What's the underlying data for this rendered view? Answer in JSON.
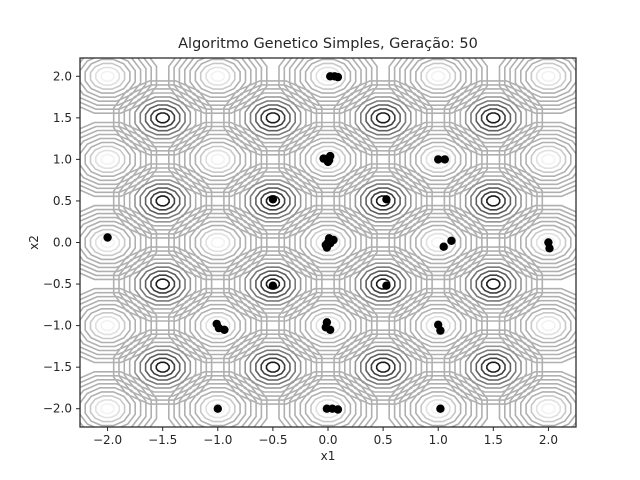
{
  "chart_data": {
    "type": "scatter",
    "title": "Algoritmo Genetico Simples, Geração: 50",
    "xlabel": "x1",
    "ylabel": "x2",
    "xlim": [
      -2.25,
      2.25
    ],
    "ylim": [
      -2.22,
      2.22
    ],
    "grid": false,
    "xticks": [
      -2.0,
      -1.5,
      -1.0,
      -0.5,
      0.0,
      0.5,
      1.0,
      1.5,
      2.0
    ],
    "yticks": [
      -2.0,
      -1.5,
      -1.0,
      -0.5,
      0.0,
      0.5,
      1.0,
      1.5,
      2.0
    ],
    "xtick_labels": [
      "−2.0",
      "−1.5",
      "−1.0",
      "−0.5",
      "0.0",
      "0.5",
      "1.0",
      "1.5",
      "2.0"
    ],
    "ytick_labels": [
      "−2.0",
      "−1.5",
      "−1.0",
      "−0.5",
      "0.0",
      "0.5",
      "1.0",
      "1.5",
      "2.0"
    ],
    "contour": {
      "domain": [
        -2.0,
        2.0
      ],
      "peaks": [
        {
          "x": -1.5,
          "y": 1.5
        },
        {
          "x": -0.5,
          "y": 1.5
        },
        {
          "x": 0.5,
          "y": 1.5
        },
        {
          "x": 1.5,
          "y": 1.5
        },
        {
          "x": -1.5,
          "y": 0.5
        },
        {
          "x": -0.5,
          "y": 0.5
        },
        {
          "x": 0.5,
          "y": 0.5
        },
        {
          "x": 1.5,
          "y": 0.5
        },
        {
          "x": -1.5,
          "y": -0.5
        },
        {
          "x": -0.5,
          "y": -0.5
        },
        {
          "x": 0.5,
          "y": -0.5
        },
        {
          "x": 1.5,
          "y": -0.5
        },
        {
          "x": -1.5,
          "y": -1.5
        },
        {
          "x": -0.5,
          "y": -1.5
        },
        {
          "x": 0.5,
          "y": -1.5
        },
        {
          "x": 1.5,
          "y": -1.5
        }
      ],
      "troughs": [
        {
          "x": -2.0,
          "y": 2.0
        },
        {
          "x": -1.0,
          "y": 2.0
        },
        {
          "x": 0.0,
          "y": 2.0
        },
        {
          "x": 1.0,
          "y": 2.0
        },
        {
          "x": 2.0,
          "y": 2.0
        },
        {
          "x": -2.0,
          "y": 1.0
        },
        {
          "x": -1.0,
          "y": 1.0
        },
        {
          "x": 0.0,
          "y": 1.0
        },
        {
          "x": 1.0,
          "y": 1.0
        },
        {
          "x": 2.0,
          "y": 1.0
        },
        {
          "x": -2.0,
          "y": 0.0
        },
        {
          "x": -1.0,
          "y": 0.0
        },
        {
          "x": 0.0,
          "y": 0.0
        },
        {
          "x": 1.0,
          "y": 0.0
        },
        {
          "x": 2.0,
          "y": 0.0
        },
        {
          "x": -2.0,
          "y": -1.0
        },
        {
          "x": -1.0,
          "y": -1.0
        },
        {
          "x": 0.0,
          "y": -1.0
        },
        {
          "x": 1.0,
          "y": -1.0
        },
        {
          "x": 2.0,
          "y": -1.0
        },
        {
          "x": -2.0,
          "y": -2.0
        },
        {
          "x": -1.0,
          "y": -2.0
        },
        {
          "x": 0.0,
          "y": -2.0
        },
        {
          "x": 1.0,
          "y": -2.0
        },
        {
          "x": 2.0,
          "y": -2.0
        }
      ],
      "colors": [
        "#ffffff",
        "#f2f2f2",
        "#e0e0e0",
        "#c8c8c8",
        "#b0b0b0",
        "#959595",
        "#7a7a7a",
        "#5e5e5e",
        "#404040",
        "#1a1a1a"
      ]
    },
    "series": [
      {
        "color": "#000000",
        "points": [
          {
            "x": 0.02,
            "y": 2.0
          },
          {
            "x": 0.06,
            "y": 2.0
          },
          {
            "x": 0.09,
            "y": 1.99
          },
          {
            "x": -0.04,
            "y": 1.01
          },
          {
            "x": 0.0,
            "y": 0.97
          },
          {
            "x": 0.02,
            "y": 1.04
          },
          {
            "x": 0.01,
            "y": 0.99
          },
          {
            "x": 1.0,
            "y": 1.0
          },
          {
            "x": 1.06,
            "y": 1.0
          },
          {
            "x": -0.5,
            "y": 0.52
          },
          {
            "x": 0.53,
            "y": 0.52
          },
          {
            "x": -2.0,
            "y": 0.06
          },
          {
            "x": 0.0,
            "y": 0.0
          },
          {
            "x": 0.02,
            "y": -0.01
          },
          {
            "x": 0.03,
            "y": 0.02
          },
          {
            "x": -0.02,
            "y": -0.03
          },
          {
            "x": 0.05,
            "y": 0.03
          },
          {
            "x": 0.01,
            "y": 0.05
          },
          {
            "x": -0.01,
            "y": -0.06
          },
          {
            "x": 1.05,
            "y": -0.05
          },
          {
            "x": 1.12,
            "y": 0.02
          },
          {
            "x": 2.0,
            "y": 0.0
          },
          {
            "x": 2.01,
            "y": -0.07
          },
          {
            "x": -0.5,
            "y": -0.52
          },
          {
            "x": 0.53,
            "y": -0.52
          },
          {
            "x": -1.01,
            "y": -0.98
          },
          {
            "x": -0.99,
            "y": -1.03
          },
          {
            "x": -0.94,
            "y": -1.05
          },
          {
            "x": -0.02,
            "y": -1.02
          },
          {
            "x": 0.02,
            "y": -1.05
          },
          {
            "x": -0.01,
            "y": -0.96
          },
          {
            "x": 1.0,
            "y": -0.99
          },
          {
            "x": 1.02,
            "y": -1.06
          },
          {
            "x": -1.0,
            "y": -2.0
          },
          {
            "x": -0.01,
            "y": -2.0
          },
          {
            "x": 0.04,
            "y": -2.0
          },
          {
            "x": 0.09,
            "y": -2.01
          },
          {
            "x": 1.02,
            "y": -2.0
          }
        ]
      }
    ]
  }
}
